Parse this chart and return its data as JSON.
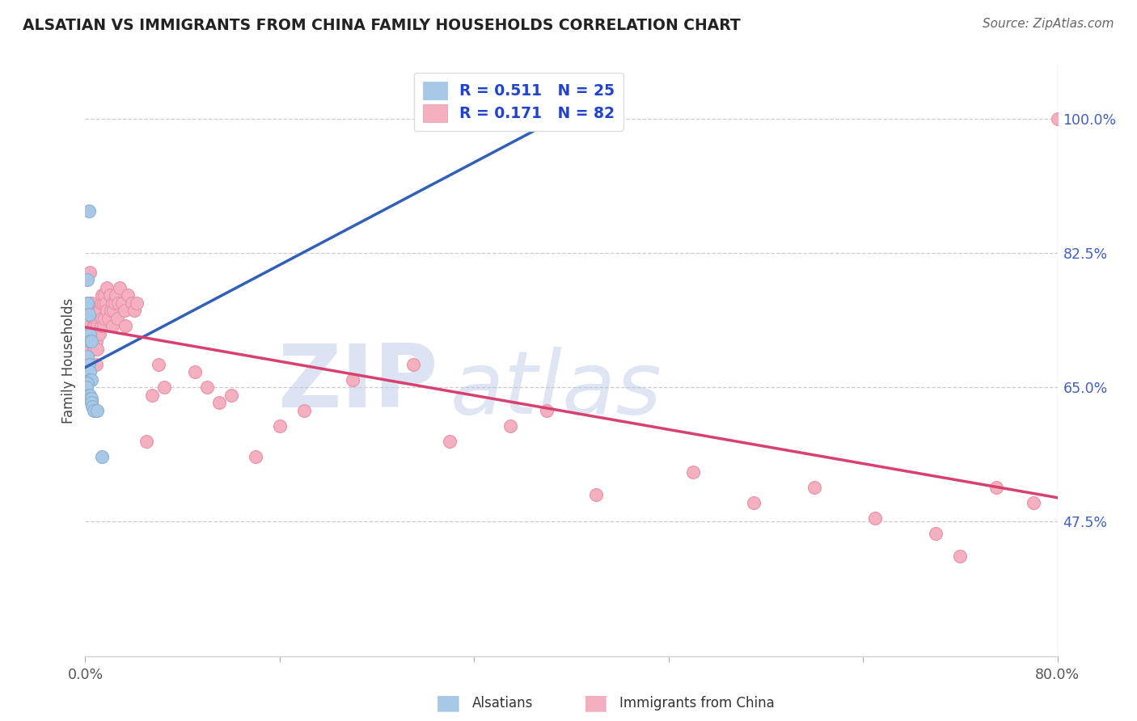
{
  "title": "ALSATIAN VS IMMIGRANTS FROM CHINA FAMILY HOUSEHOLDS CORRELATION CHART",
  "source": "Source: ZipAtlas.com",
  "ylabel": "Family Households",
  "ytick_labels": [
    "100.0%",
    "82.5%",
    "65.0%",
    "47.5%"
  ],
  "ytick_vals": [
    1.0,
    0.825,
    0.65,
    0.475
  ],
  "xlim": [
    0.0,
    0.8
  ],
  "ylim": [
    0.3,
    1.07
  ],
  "xtick_positions": [
    0.0,
    0.16,
    0.32,
    0.48,
    0.64,
    0.8
  ],
  "xtick_labels": [
    "0.0%",
    "",
    "",
    "",
    "",
    "80.0%"
  ],
  "legend_r_blue": "R = 0.511",
  "legend_n_blue": "N = 25",
  "legend_r_pink": "R = 0.171",
  "legend_n_pink": "N = 82",
  "blue_fill": "#a8c8e8",
  "pink_fill": "#f5b0c0",
  "blue_line": "#3060b8",
  "pink_line": "#d84070",
  "legend_text_color": "#2244cc",
  "watermark_zip": "ZIP",
  "watermark_atlas": "atlas",
  "watermark_color_zip": "#c8d8f0",
  "watermark_color_atlas": "#b8c8e8",
  "alsatians_x": [
    0.003,
    0.002,
    0.002,
    0.003,
    0.003,
    0.004,
    0.004,
    0.005,
    0.002,
    0.003,
    0.004,
    0.004,
    0.005,
    0.002,
    0.001,
    0.003,
    0.004,
    0.004,
    0.005,
    0.005,
    0.006,
    0.007,
    0.01,
    0.014,
    0.38
  ],
  "alsatians_y": [
    0.88,
    0.79,
    0.76,
    0.745,
    0.72,
    0.72,
    0.71,
    0.71,
    0.69,
    0.68,
    0.67,
    0.66,
    0.66,
    0.655,
    0.65,
    0.64,
    0.64,
    0.635,
    0.635,
    0.63,
    0.625,
    0.62,
    0.62,
    0.56,
    1.0
  ],
  "china_x": [
    0.002,
    0.003,
    0.004,
    0.003,
    0.004,
    0.005,
    0.004,
    0.005,
    0.005,
    0.006,
    0.005,
    0.006,
    0.007,
    0.006,
    0.007,
    0.007,
    0.008,
    0.008,
    0.009,
    0.009,
    0.009,
    0.01,
    0.01,
    0.011,
    0.011,
    0.012,
    0.012,
    0.013,
    0.013,
    0.014,
    0.014,
    0.015,
    0.015,
    0.016,
    0.016,
    0.017,
    0.018,
    0.018,
    0.019,
    0.02,
    0.021,
    0.022,
    0.022,
    0.023,
    0.024,
    0.025,
    0.026,
    0.027,
    0.028,
    0.03,
    0.032,
    0.033,
    0.035,
    0.038,
    0.04,
    0.042,
    0.05,
    0.055,
    0.06,
    0.065,
    0.09,
    0.1,
    0.11,
    0.12,
    0.14,
    0.16,
    0.18,
    0.22,
    0.27,
    0.3,
    0.35,
    0.38,
    0.42,
    0.5,
    0.55,
    0.6,
    0.65,
    0.7,
    0.72,
    0.75,
    0.78,
    0.8
  ],
  "china_y": [
    0.72,
    0.76,
    0.8,
    0.68,
    0.73,
    0.75,
    0.7,
    0.76,
    0.72,
    0.75,
    0.68,
    0.72,
    0.74,
    0.68,
    0.73,
    0.7,
    0.73,
    0.7,
    0.74,
    0.71,
    0.68,
    0.73,
    0.7,
    0.75,
    0.72,
    0.75,
    0.72,
    0.76,
    0.73,
    0.77,
    0.74,
    0.76,
    0.73,
    0.77,
    0.74,
    0.76,
    0.78,
    0.75,
    0.74,
    0.77,
    0.75,
    0.76,
    0.73,
    0.75,
    0.76,
    0.77,
    0.74,
    0.76,
    0.78,
    0.76,
    0.75,
    0.73,
    0.77,
    0.76,
    0.75,
    0.76,
    0.58,
    0.64,
    0.68,
    0.65,
    0.67,
    0.65,
    0.63,
    0.64,
    0.56,
    0.6,
    0.62,
    0.66,
    0.68,
    0.58,
    0.6,
    0.62,
    0.51,
    0.54,
    0.5,
    0.52,
    0.48,
    0.46,
    0.43,
    0.52,
    0.5,
    1.0
  ]
}
